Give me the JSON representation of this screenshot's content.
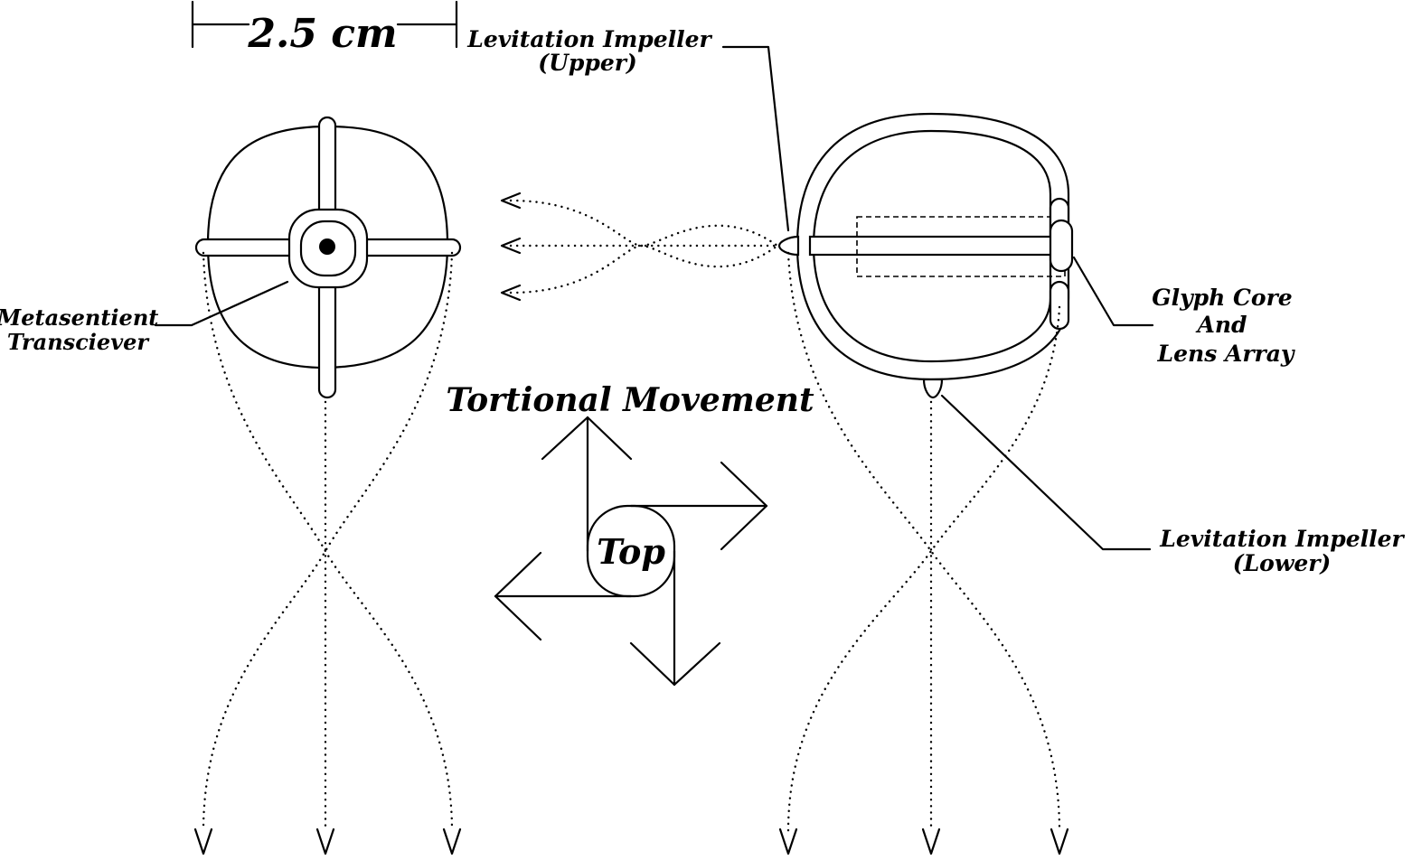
{
  "scale": {
    "label": "2.5 cm"
  },
  "labels": {
    "upper_impeller_line1": "Levitation Impeller",
    "upper_impeller_line2": "(Upper)",
    "transceiver_line1": "Metasentient",
    "transceiver_line2": "Transciever",
    "glyph_line1": "Glyph Core",
    "glyph_line2": "And",
    "glyph_line3": "Lens Array",
    "lower_impeller_line1": "Levitation Impeller",
    "lower_impeller_line2": "(Lower)",
    "torsion_title": "Tortional Movement",
    "torsion_center": "Top"
  }
}
